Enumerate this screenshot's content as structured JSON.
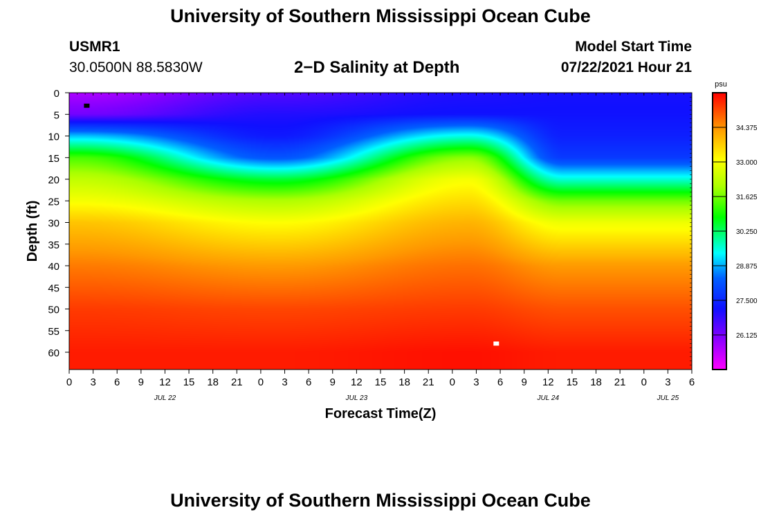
{
  "header": {
    "title": "University of Southern Mississippi Ocean Cube",
    "station_id": "USMR1",
    "coordinates": "30.0500N  88.5830W",
    "plot_title": "2−D Salinity at Depth",
    "start_label": "Model Start Time",
    "start_value": "07/22/2021 Hour 21"
  },
  "footer": {
    "title": "University of Southern Mississippi Ocean Cube"
  },
  "chart_data": {
    "type": "heatmap",
    "title": "2−D Salinity at Depth",
    "xlabel": "Forecast Time(Z)",
    "ylabel": "Depth (ft)",
    "units": "psu",
    "x_range_hours": [
      0,
      78
    ],
    "x_ticks": [
      {
        "hour": 0,
        "label": "0"
      },
      {
        "hour": 3,
        "label": "3"
      },
      {
        "hour": 6,
        "label": "6"
      },
      {
        "hour": 9,
        "label": "9"
      },
      {
        "hour": 12,
        "label": "12"
      },
      {
        "hour": 15,
        "label": "15"
      },
      {
        "hour": 18,
        "label": "18"
      },
      {
        "hour": 21,
        "label": "21"
      },
      {
        "hour": 24,
        "label": "0"
      },
      {
        "hour": 27,
        "label": "3"
      },
      {
        "hour": 30,
        "label": "6"
      },
      {
        "hour": 33,
        "label": "9"
      },
      {
        "hour": 36,
        "label": "12"
      },
      {
        "hour": 39,
        "label": "15"
      },
      {
        "hour": 42,
        "label": "18"
      },
      {
        "hour": 45,
        "label": "21"
      },
      {
        "hour": 48,
        "label": "0"
      },
      {
        "hour": 51,
        "label": "3"
      },
      {
        "hour": 54,
        "label": "6"
      },
      {
        "hour": 57,
        "label": "9"
      },
      {
        "hour": 60,
        "label": "12"
      },
      {
        "hour": 63,
        "label": "15"
      },
      {
        "hour": 66,
        "label": "18"
      },
      {
        "hour": 69,
        "label": "21"
      },
      {
        "hour": 72,
        "label": "0"
      },
      {
        "hour": 75,
        "label": "3"
      },
      {
        "hour": 78,
        "label": "6"
      }
    ],
    "date_labels": [
      {
        "hour": 12,
        "label": "JUL 22"
      },
      {
        "hour": 36,
        "label": "JUL 23"
      },
      {
        "hour": 60,
        "label": "JUL 24"
      },
      {
        "hour": 75,
        "label": "JUL 25"
      }
    ],
    "ylim": [
      0,
      64
    ],
    "y_ticks": [
      0,
      5,
      10,
      15,
      20,
      25,
      30,
      35,
      40,
      45,
      50,
      55,
      60
    ],
    "colorbar": {
      "label": "psu",
      "range": [
        24.75,
        35.75
      ],
      "ticks": [
        "34.375",
        "33.000",
        "31.625",
        "30.250",
        "28.875",
        "27.500",
        "26.125"
      ],
      "tick_values": [
        34.375,
        33.0,
        31.625,
        30.25,
        28.875,
        27.5,
        26.125
      ]
    },
    "profile_samples": [
      {
        "hour": 1,
        "depth_ft": [
          0,
          5,
          10,
          15,
          20,
          25,
          30,
          40,
          50,
          60
        ],
        "salinity": [
          25.6,
          26.2,
          29.0,
          31.3,
          32.3,
          33.0,
          33.8,
          34.6,
          35.2,
          35.5
        ]
      },
      {
        "hour": 26,
        "depth_ft": [
          0,
          5,
          10,
          15,
          20,
          25,
          30,
          40,
          50,
          60
        ],
        "salinity": [
          26.5,
          27.0,
          27.3,
          28.2,
          30.5,
          32.1,
          33.1,
          34.3,
          35.1,
          35.5
        ]
      },
      {
        "hour": 50,
        "depth_ft": [
          0,
          5,
          10,
          15,
          20,
          25,
          30,
          40,
          50,
          60
        ],
        "salinity": [
          27.0,
          27.2,
          29.5,
          31.8,
          33.0,
          33.5,
          34.0,
          34.7,
          35.2,
          35.6
        ]
      },
      {
        "hour": 62,
        "depth_ft": [
          0,
          5,
          10,
          15,
          20,
          25,
          30,
          40,
          50,
          60
        ],
        "salinity": [
          27.1,
          27.2,
          27.4,
          27.8,
          29.6,
          31.6,
          32.9,
          34.3,
          35.0,
          35.5
        ]
      }
    ],
    "station_markers": [
      {
        "hour": 2.2,
        "depth_ft": 3,
        "color": "#000000"
      },
      {
        "hour": 53.5,
        "depth_ft": 58,
        "color": "#ffffff"
      }
    ],
    "colors": {
      "frame": "#000000",
      "marker_dark": "#000000",
      "marker_light": "#ffffff"
    }
  }
}
